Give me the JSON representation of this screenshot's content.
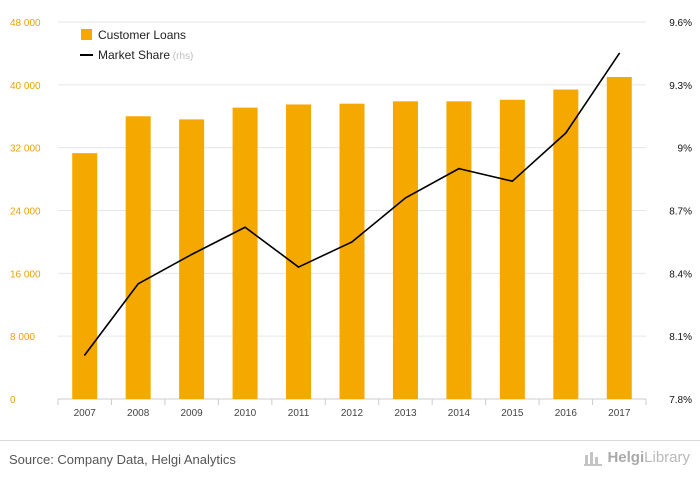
{
  "chart_data": {
    "type": "bar",
    "categories": [
      "2007",
      "2008",
      "2009",
      "2010",
      "2011",
      "2012",
      "2013",
      "2014",
      "2015",
      "2016",
      "2017"
    ],
    "series": [
      {
        "name": "Customer Loans",
        "type": "bar",
        "axis": "left",
        "values": [
          31300,
          36000,
          35600,
          37100,
          37500,
          37600,
          37900,
          37900,
          38100,
          39400,
          41000
        ]
      },
      {
        "name": "Market Share",
        "type": "line",
        "axis": "right",
        "values": [
          8.01,
          8.35,
          8.49,
          8.62,
          8.43,
          8.55,
          8.76,
          8.9,
          8.84,
          9.07,
          9.45
        ]
      }
    ],
    "legend": {
      "position": "top-left",
      "items": [
        "Customer Loans",
        "Market Share"
      ],
      "rhs_suffix": "(rhs)"
    },
    "left_axis": {
      "ticks": [
        "0",
        "8 000",
        "16 000",
        "24 000",
        "32 000",
        "40 000",
        "48 000"
      ],
      "ylim": [
        0,
        48000
      ]
    },
    "right_axis": {
      "ticks": [
        "7.8%",
        "8.1%",
        "8.4%",
        "8.7%",
        "9%",
        "9.3%",
        "9.6%"
      ],
      "ylim": [
        7.8,
        9.6
      ]
    },
    "grid": true,
    "colors": {
      "bar": "#F5A800",
      "line": "#000000",
      "left_tick": "#E8A20C",
      "right_tick": "#111111",
      "grid": "#e6e6e6"
    }
  },
  "footer": {
    "source": "Source: Company Data, Helgi Analytics",
    "logo_name_a": "Helgi",
    "logo_name_b": "Library"
  }
}
